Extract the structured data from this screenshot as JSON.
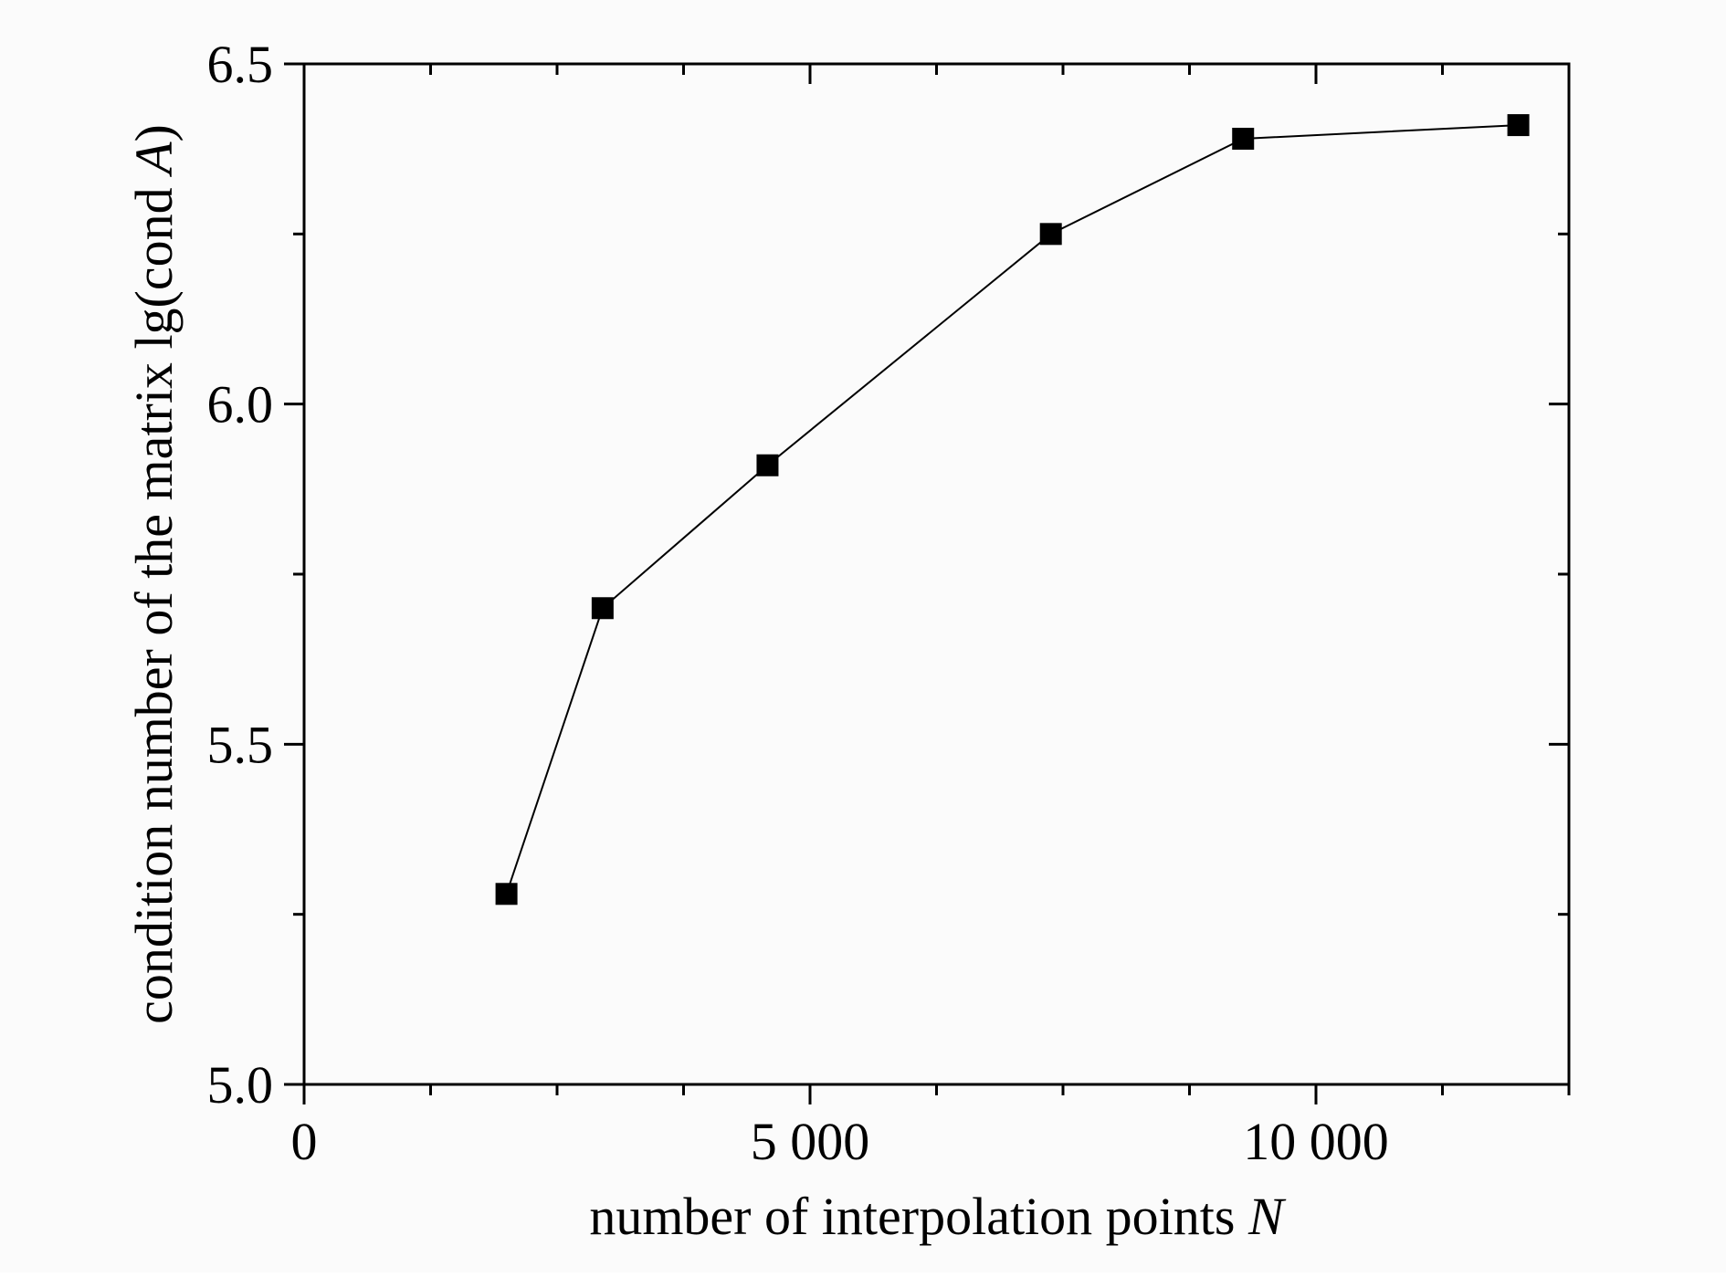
{
  "chart_data": {
    "type": "line",
    "title": "",
    "xlabel": "number of interpolation points ",
    "xlabel_var": "N",
    "ylabel": "condition number of the matrix lg(cond ",
    "ylabel_var": "A",
    "ylabel_close": ")",
    "xlim": [
      0,
      12500
    ],
    "ylim": [
      5.0,
      6.5
    ],
    "x_ticks": [
      {
        "value": 0,
        "label": "0"
      },
      {
        "value": 5000,
        "label": "5 000"
      },
      {
        "value": 10000,
        "label": "10 000"
      }
    ],
    "x_minor_ticks": [
      1250,
      2500,
      3750,
      6250,
      7500,
      8750,
      11250,
      12500
    ],
    "y_ticks": [
      {
        "value": 5.0,
        "label": "5.0"
      },
      {
        "value": 5.5,
        "label": "5.5"
      },
      {
        "value": 6.0,
        "label": "6.0"
      },
      {
        "value": 6.5,
        "label": "6.5"
      }
    ],
    "y_minor_ticks": [
      5.25,
      5.75,
      6.25
    ],
    "grid": false,
    "legend": "none",
    "series": [
      {
        "marker": "square",
        "color": "#000000",
        "x": [
          2000,
          2950,
          4580,
          7380,
          9280,
          12000
        ],
        "y": [
          5.28,
          5.7,
          5.91,
          6.25,
          6.39,
          6.41
        ]
      }
    ]
  }
}
